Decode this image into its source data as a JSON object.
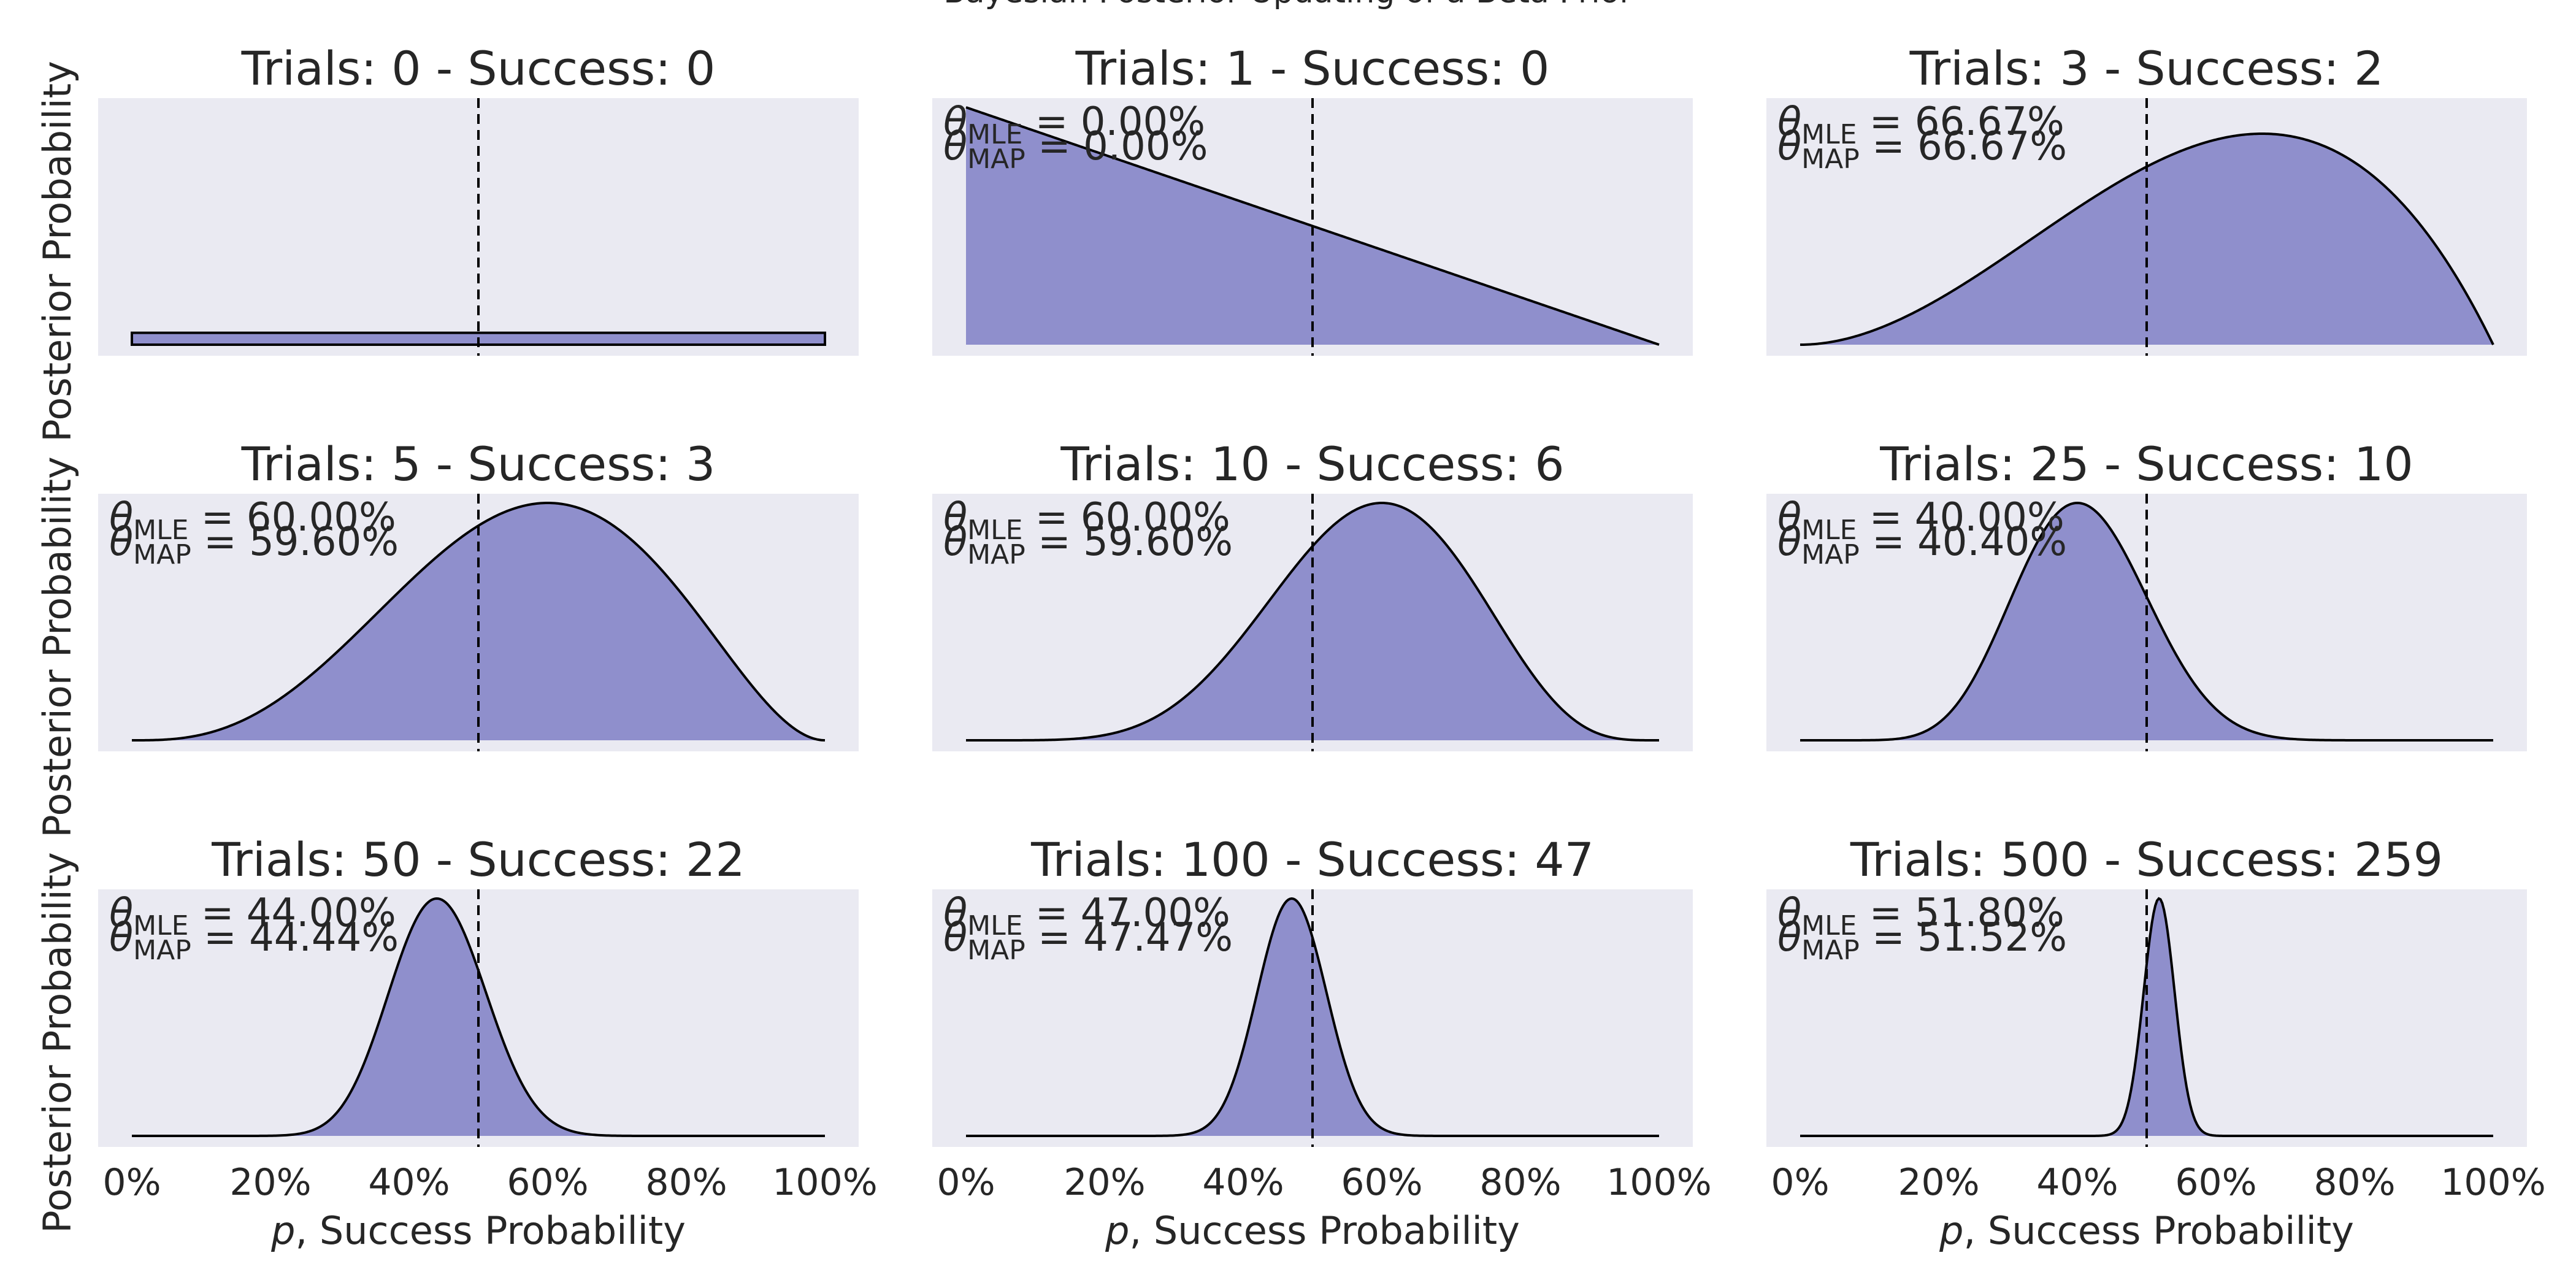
{
  "figure": {
    "suptitle": "Bayesian Posterior Updating of a Beta Prior",
    "colors": {
      "fill": "#8f8fcc",
      "line": "#000000",
      "panel_bg": "#eaeaf2",
      "text": "#262626"
    }
  },
  "chart_data": [
    {
      "type": "area",
      "title": "Trials: 0 - Success: 0",
      "trials": 0,
      "successes": 0,
      "mle_label": "",
      "map_label": "",
      "x_range": [
        0,
        1
      ],
      "vline_x": 0.5,
      "ylabel": "Posterior Probability",
      "xlabel": "",
      "prior": [
        1,
        1
      ],
      "grid": false
    },
    {
      "type": "area",
      "title": "Trials: 1 - Success: 0",
      "trials": 1,
      "successes": 0,
      "mle_label": "0.00%",
      "map_label": "0.00%",
      "x_range": [
        0,
        1
      ],
      "vline_x": 0.5,
      "ylabel": "",
      "xlabel": "",
      "prior": [
        1,
        1
      ],
      "grid": false
    },
    {
      "type": "area",
      "title": "Trials: 3 - Success: 2",
      "trials": 3,
      "successes": 2,
      "mle_label": "66.67%",
      "map_label": "66.67%",
      "x_range": [
        0,
        1
      ],
      "vline_x": 0.5,
      "ylabel": "",
      "xlabel": "",
      "prior": [
        1,
        1
      ],
      "grid": false
    },
    {
      "type": "area",
      "title": "Trials: 5 - Success: 3",
      "trials": 5,
      "successes": 3,
      "mle_label": "60.00%",
      "map_label": "59.60%",
      "x_range": [
        0,
        1
      ],
      "vline_x": 0.5,
      "ylabel": "Posterior Probability",
      "xlabel": "",
      "prior": [
        1,
        1
      ],
      "grid": false
    },
    {
      "type": "area",
      "title": "Trials: 10 - Success: 6",
      "trials": 10,
      "successes": 6,
      "mle_label": "60.00%",
      "map_label": "59.60%",
      "x_range": [
        0,
        1
      ],
      "vline_x": 0.5,
      "ylabel": "",
      "xlabel": "",
      "prior": [
        1,
        1
      ],
      "grid": false
    },
    {
      "type": "area",
      "title": "Trials: 25 - Success: 10",
      "trials": 25,
      "successes": 10,
      "mle_label": "40.00%",
      "map_label": "40.40%",
      "x_range": [
        0,
        1
      ],
      "vline_x": 0.5,
      "ylabel": "",
      "xlabel": "",
      "prior": [
        1,
        1
      ],
      "grid": false
    },
    {
      "type": "area",
      "title": "Trials: 50 - Success: 22",
      "trials": 50,
      "successes": 22,
      "mle_label": "44.00%",
      "map_label": "44.44%",
      "x_range": [
        0,
        1
      ],
      "vline_x": 0.5,
      "ylabel": "Posterior Probability",
      "xlabel": "p, Success Probability",
      "prior": [
        1,
        1
      ],
      "grid": false
    },
    {
      "type": "area",
      "title": "Trials: 100 - Success: 47",
      "trials": 100,
      "successes": 47,
      "mle_label": "47.00%",
      "map_label": "47.47%",
      "x_range": [
        0,
        1
      ],
      "vline_x": 0.5,
      "ylabel": "",
      "xlabel": "p, Success Probability",
      "prior": [
        1,
        1
      ],
      "grid": false
    },
    {
      "type": "area",
      "title": "Trials: 500 - Success: 259",
      "trials": 500,
      "successes": 259,
      "mle_label": "51.80%",
      "map_label": "51.52%",
      "x_range": [
        0,
        1
      ],
      "vline_x": 0.5,
      "ylabel": "",
      "xlabel": "p, Success Probability",
      "prior": [
        1,
        1
      ],
      "grid": false
    }
  ],
  "x_ticks": [
    "0%",
    "20%",
    "40%",
    "60%",
    "80%",
    "100%"
  ],
  "x_tick_values": [
    0,
    0.2,
    0.4,
    0.6,
    0.8,
    1.0
  ],
  "annotation_symbols": {
    "theta": "θ",
    "mle_sub": "MLE",
    "map_sub": "MAP",
    "equals": " = "
  }
}
